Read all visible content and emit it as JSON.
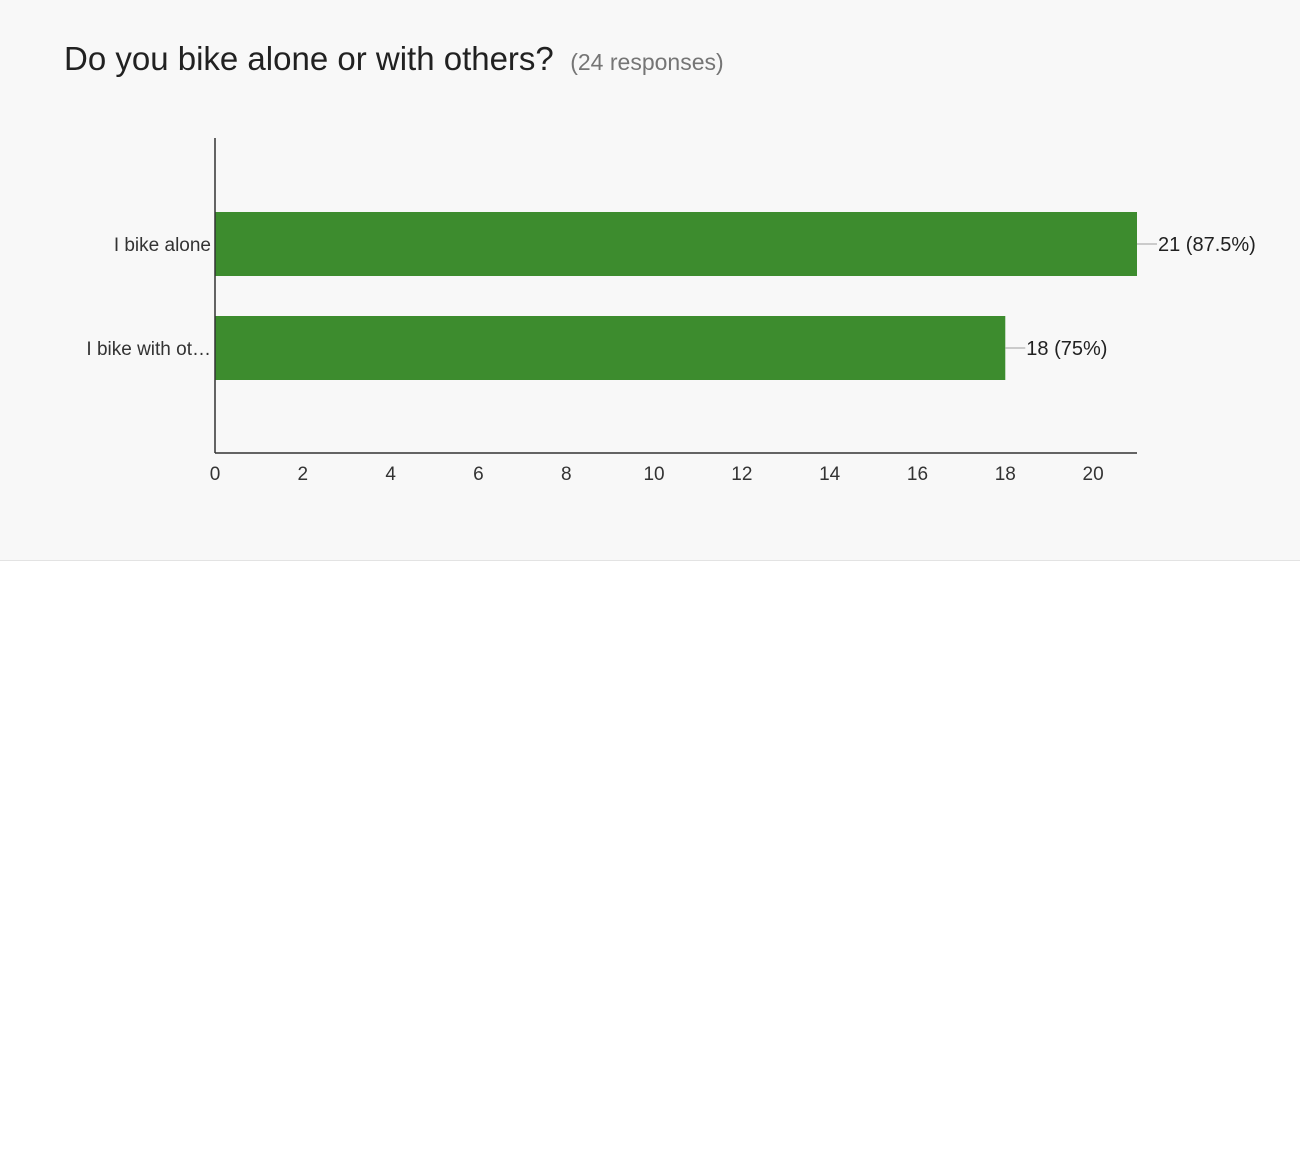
{
  "question": {
    "title": "Do you bike alone or with others?",
    "responses_label": "(24 responses)"
  },
  "colors": {
    "bar": "#3d8c2e",
    "axis": "#333333",
    "text": "#333333"
  },
  "chart_data": {
    "type": "bar",
    "orientation": "horizontal",
    "categories": [
      "I bike alone",
      "I bike with ot…"
    ],
    "values": [
      21,
      18
    ],
    "data_labels": [
      "21 (87.5%)",
      "18 (75%)"
    ],
    "xlim": [
      0,
      21
    ],
    "x_ticks": [
      0,
      2,
      4,
      6,
      8,
      10,
      12,
      14,
      16,
      18,
      20
    ],
    "grid": false,
    "legend": "none"
  }
}
